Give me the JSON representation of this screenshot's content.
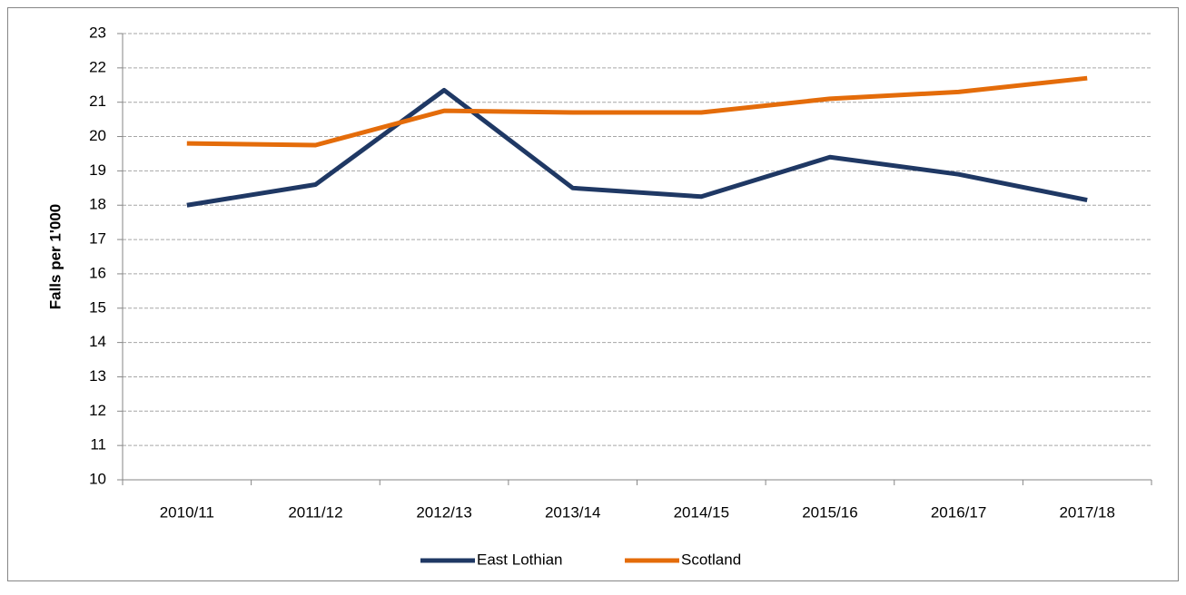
{
  "chart_data": {
    "type": "line",
    "y_label": "Falls per 1'000",
    "categories": [
      "2010/11",
      "2011/12",
      "2012/13",
      "2013/14",
      "2014/15",
      "2015/16",
      "2016/17",
      "2017/18"
    ],
    "series": [
      {
        "name": "East Lothian",
        "color": "#1f3864",
        "values": [
          18.0,
          18.6,
          21.35,
          18.5,
          18.25,
          19.4,
          18.9,
          18.15
        ]
      },
      {
        "name": "Scotland",
        "color": "#e46c0a",
        "values": [
          19.8,
          19.75,
          20.75,
          20.7,
          20.7,
          21.1,
          21.3,
          21.7
        ]
      }
    ],
    "ylim": [
      10,
      23
    ],
    "yticks": [
      10,
      11,
      12,
      13,
      14,
      15,
      16,
      17,
      18,
      19,
      20,
      21,
      22,
      23
    ],
    "grid": true,
    "legend": "bottom"
  }
}
